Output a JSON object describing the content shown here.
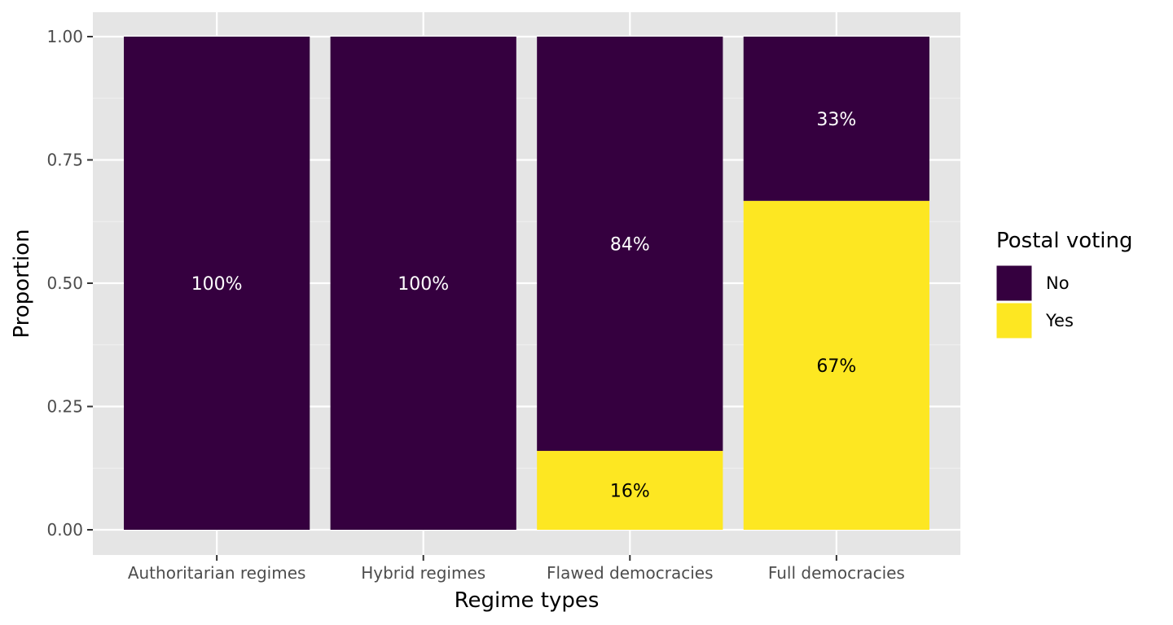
{
  "chart_data": {
    "type": "bar",
    "stacked": true,
    "categories": [
      "Authoritarian regimes",
      "Hybrid regimes",
      "Flawed democracies",
      "Full democracies"
    ],
    "series": [
      {
        "name": "No",
        "values": [
          1.0,
          1.0,
          0.84,
          0.333
        ],
        "labels": [
          "100%",
          "100%",
          "84%",
          "33%"
        ],
        "color": "#35003f",
        "label_color": "#ffffff"
      },
      {
        "name": "Yes",
        "values": [
          0.0,
          0.0,
          0.16,
          0.667
        ],
        "labels": [
          "",
          "",
          "16%",
          "67%"
        ],
        "color": "#fde722",
        "label_color": "#000000"
      }
    ],
    "stack_order": [
      "Yes",
      "No"
    ],
    "xlabel": "Regime types",
    "ylabel": "Proportion",
    "ylim": [
      0,
      1
    ],
    "yticks": [
      0,
      0.25,
      0.5,
      0.75,
      1
    ],
    "ytick_labels": [
      "0.00",
      "0.25",
      "0.50",
      "0.75",
      "1.00"
    ],
    "grid": true,
    "legend": {
      "title": "Postal voting",
      "position": "right",
      "entries": [
        "No",
        "Yes"
      ]
    },
    "panel_color": "#e5e5e5"
  }
}
